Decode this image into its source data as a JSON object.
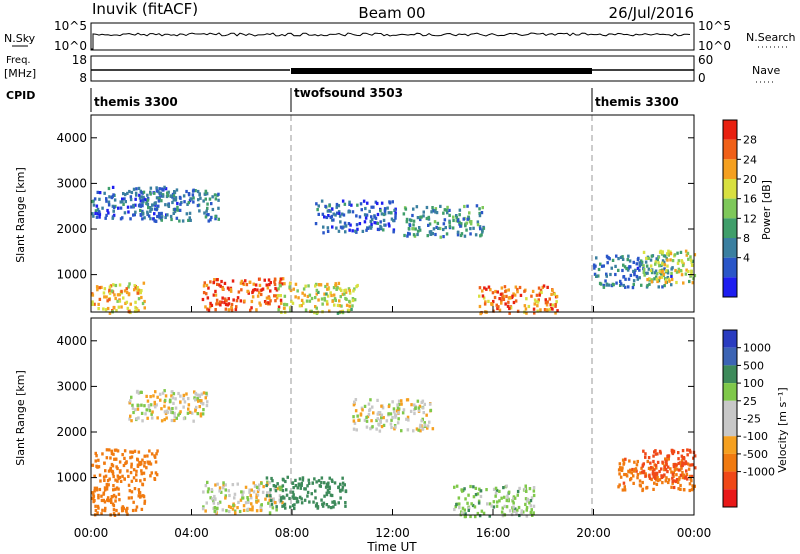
{
  "header": {
    "station": "Inuvik (fitACF)",
    "beam": "Beam 00",
    "date": "26/Jul/2016"
  },
  "panels": {
    "nsky": {
      "label": "N.Sky",
      "ticks": [
        "10^5",
        "10^0"
      ],
      "right_label": "N.Search",
      "right_ticks": [
        "10^5",
        "10^0"
      ]
    },
    "freq": {
      "label_top": "Freq.",
      "label_unit": "[MHz]",
      "ticks": [
        "18",
        "8"
      ],
      "right_label": "Nave",
      "right_ticks": [
        "60",
        "0"
      ]
    },
    "cpid": {
      "label": "CPID",
      "segments": [
        "themis 3300",
        "twofsound 3503",
        "themis 3300"
      ]
    }
  },
  "x_axis": {
    "label": "Time UT",
    "ticks": [
      "00:00",
      "04:00",
      "08:00",
      "12:00",
      "16:00",
      "20:00",
      "00:00"
    ]
  },
  "colors": {
    "power": [
      "#1e1ef0",
      "#2a56c8",
      "#3a7fa0",
      "#3f9e6a",
      "#7ec85a",
      "#d8e040",
      "#f5a020",
      "#f06018",
      "#e82010"
    ],
    "velocity": [
      "#2a3cc0",
      "#3c64b4",
      "#3d8a5a",
      "#7fc84a",
      "#c8c8c8",
      "#c8c8c8",
      "#f5a020",
      "#f07a10",
      "#f04818",
      "#e81818"
    ]
  },
  "chart_data": [
    {
      "type": "heatmap",
      "title": "",
      "ylabel": "Slant Range [km]",
      "xlabel": "",
      "x_range": [
        "00:00",
        "24:00"
      ],
      "ylim": [
        180,
        4500
      ],
      "yticks": [
        "1000",
        "2000",
        "3000",
        "4000"
      ],
      "colorbar": {
        "label": "Power [dB]",
        "ticks": [
          "4",
          "8",
          "12",
          "16",
          "20",
          "24",
          "28"
        ],
        "range": [
          0,
          30
        ]
      },
      "grid": false,
      "series": [
        {
          "name": "",
          "values": [
            {
              "t": 0.5,
              "r": 500,
              "v": 20
            },
            {
              "t": 1.5,
              "r": 2600,
              "v": 6
            },
            {
              "t": 3.5,
              "r": 2550,
              "v": 8
            },
            {
              "t": 6.0,
              "r": 600,
              "v": 26
            },
            {
              "t": 9.0,
              "r": 500,
              "v": 18
            },
            {
              "t": 10.5,
              "r": 2300,
              "v": 6
            },
            {
              "t": 14.0,
              "r": 2200,
              "v": 10
            },
            {
              "t": 17.0,
              "r": 450,
              "v": 24
            },
            {
              "t": 21.5,
              "r": 1100,
              "v": 8
            },
            {
              "t": 23.5,
              "r": 1200,
              "v": 18
            }
          ]
        }
      ]
    },
    {
      "type": "heatmap",
      "title": "",
      "ylabel": "Slant Range [km]",
      "xlabel": "Time UT",
      "x_range": [
        "00:00",
        "24:00"
      ],
      "ylim": [
        180,
        4500
      ],
      "yticks": [
        "1000",
        "2000",
        "3000",
        "4000"
      ],
      "colorbar": {
        "label": "Velocity [m s⁻¹]",
        "ticks": [
          "1000",
          "500",
          "100",
          "25",
          "-25",
          "-100",
          "-500",
          "-1000"
        ],
        "range": [
          -1200,
          1200
        ]
      },
      "grid": false,
      "series": [
        {
          "name": "",
          "values": [
            {
              "t": 0.5,
              "r": 550,
              "v": -300
            },
            {
              "t": 1.0,
              "r": 1300,
              "v": -200
            },
            {
              "t": 3.0,
              "r": 2600,
              "v": 0
            },
            {
              "t": 6.0,
              "r": 600,
              "v": 0
            },
            {
              "t": 8.5,
              "r": 700,
              "v": 400
            },
            {
              "t": 12.0,
              "r": 2400,
              "v": 0
            },
            {
              "t": 16.0,
              "r": 500,
              "v": 60
            },
            {
              "t": 22.5,
              "r": 1100,
              "v": -450
            },
            {
              "t": 23.5,
              "r": 1300,
              "v": -600
            }
          ]
        }
      ]
    }
  ]
}
